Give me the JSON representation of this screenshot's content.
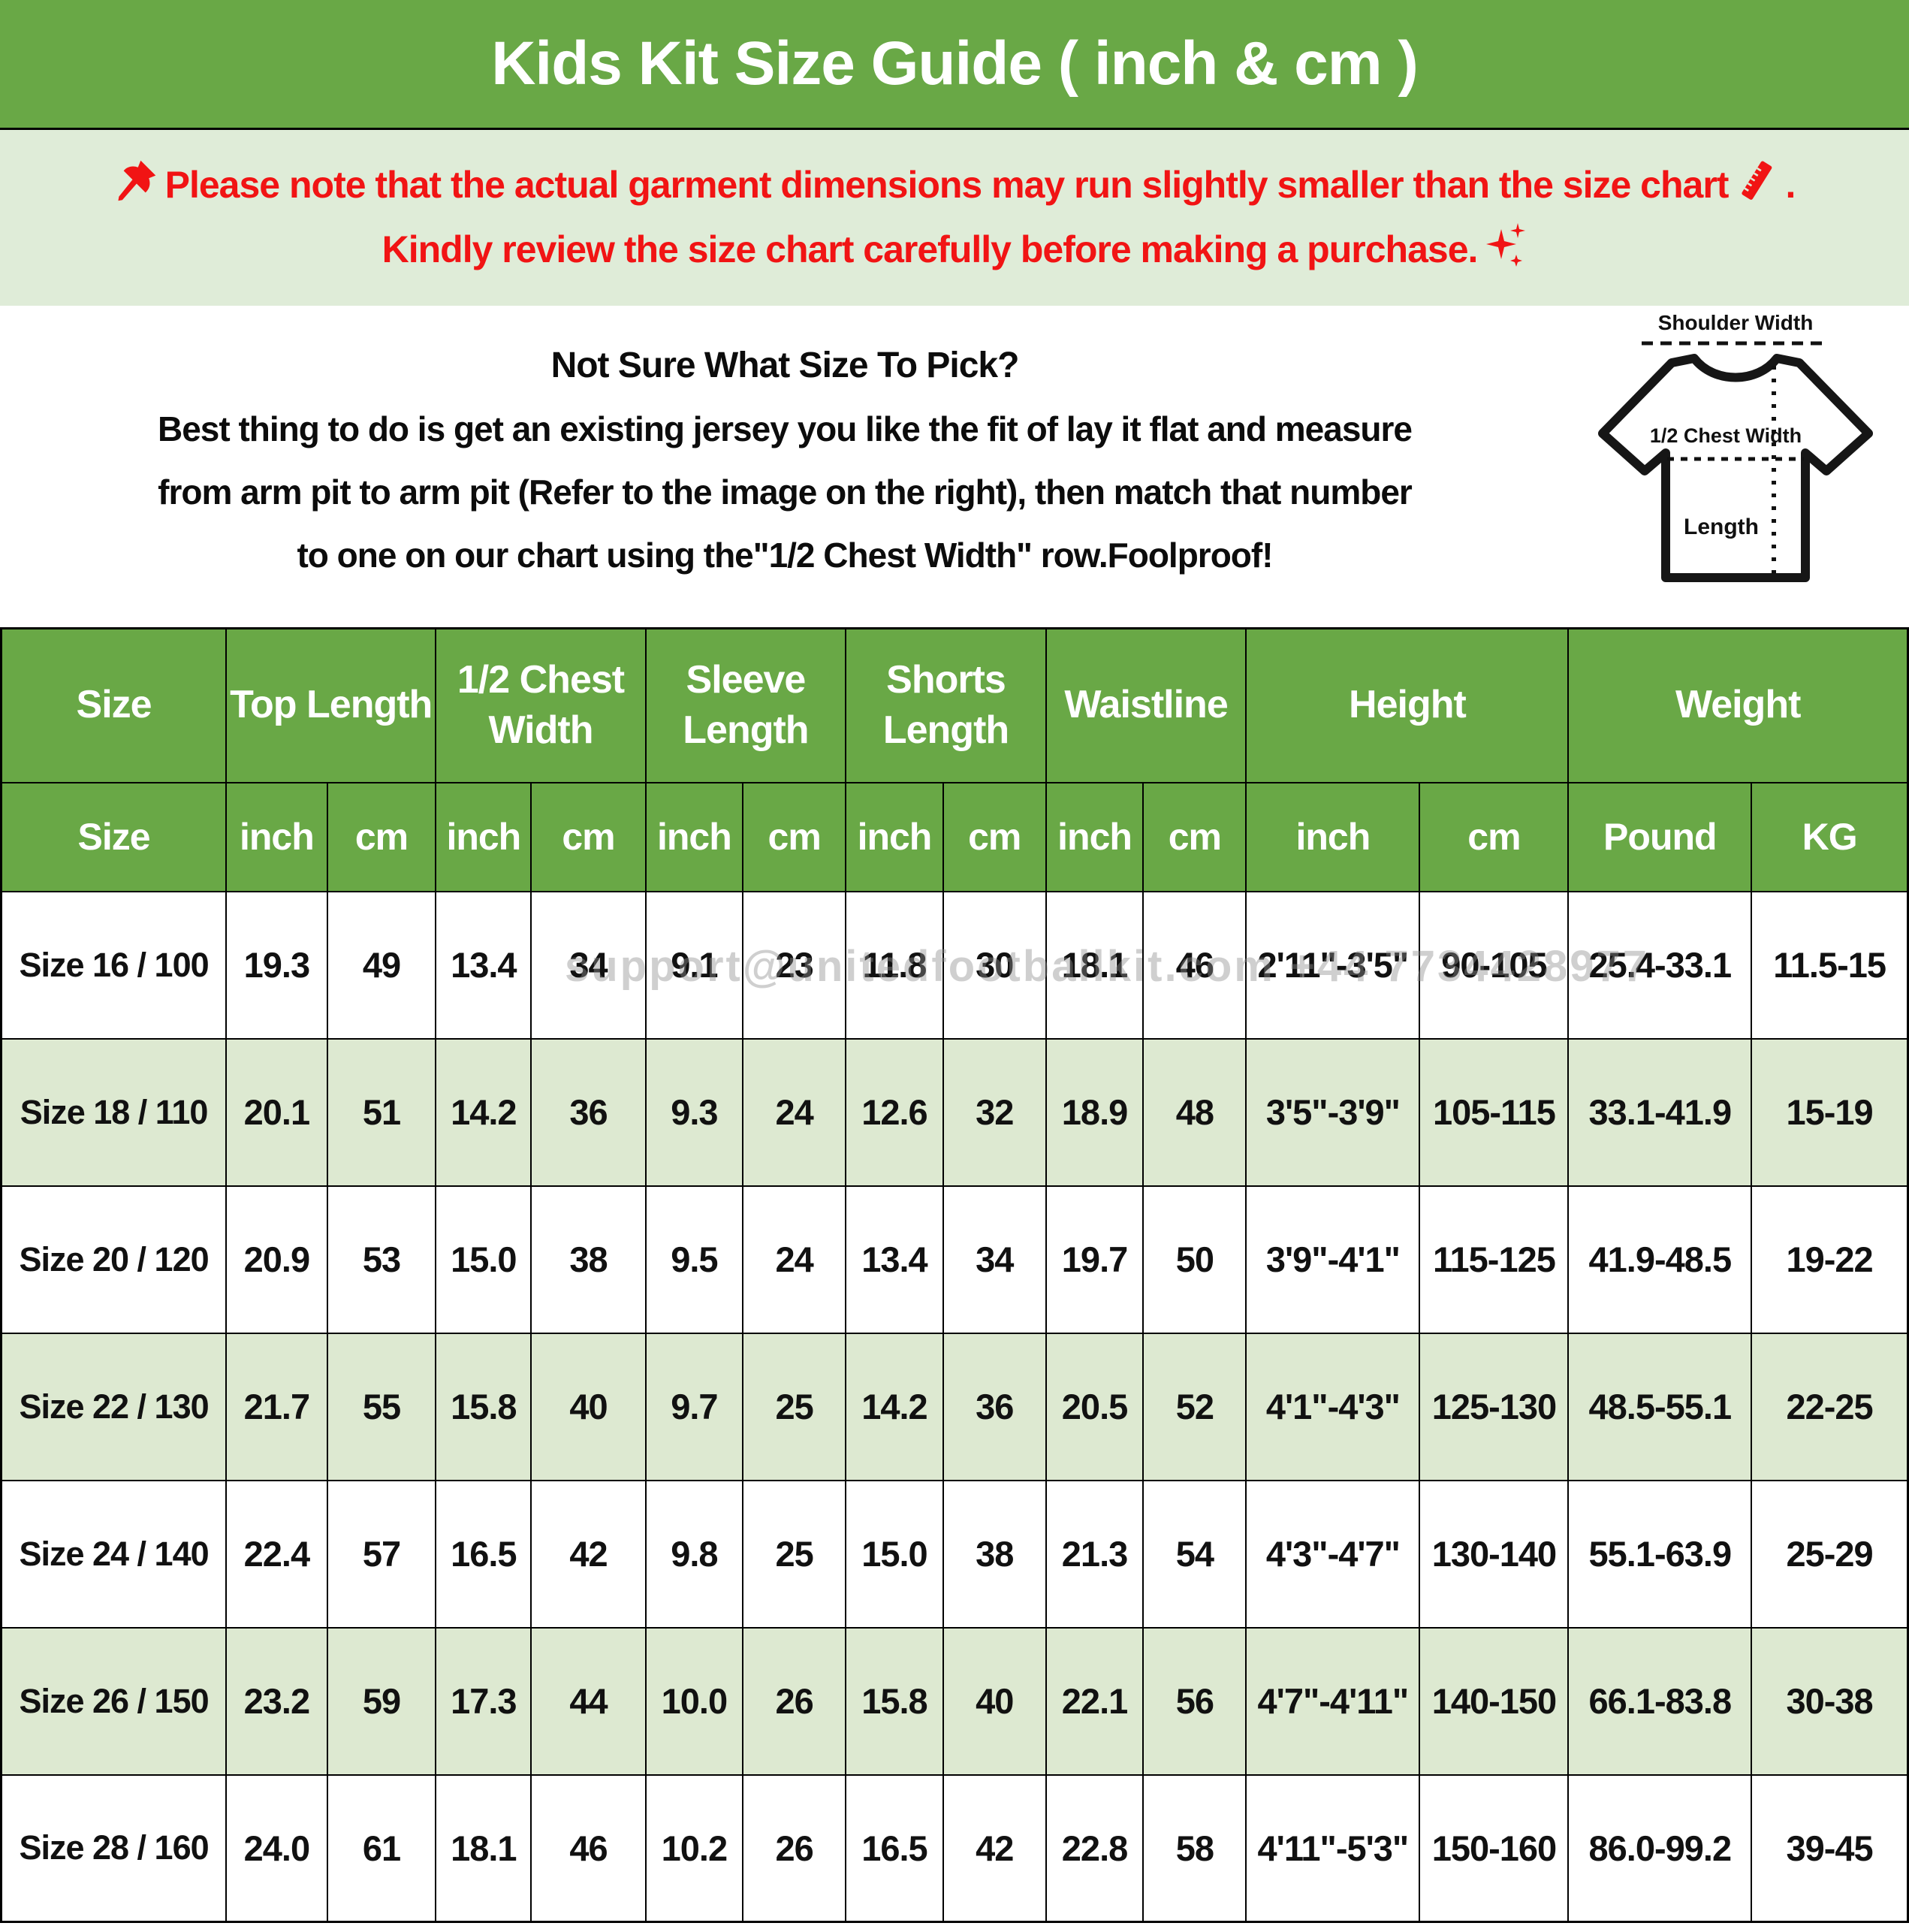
{
  "page": {
    "title": "Kids Kit Size Guide ( inch & cm )"
  },
  "notice": {
    "line1_text": "Please note that the actual garment dimensions may run slightly smaller than the size chart",
    "line1_period": ".",
    "line2_text": "Kindly review the size chart carefully before making a purchase.",
    "icons": {
      "pushpin": "📌",
      "ruler": "📏",
      "sparkles": "✨"
    }
  },
  "howto": {
    "heading": "Not Sure What Size To Pick?",
    "line1": "Best thing to do is get an existing jersey you like the fit of lay it flat and measure",
    "line2": "from arm pit to arm pit (Refer to the image on the right), then match that number",
    "line3": "to one on our chart using the\"1/2 Chest Width\" row.Foolproof!"
  },
  "diagram": {
    "shoulder_label": "Shoulder Width",
    "chest_label": "1/2 Chest Width",
    "length_label": "Length"
  },
  "table": {
    "group_headers": [
      "Size",
      "Top Length",
      "1/2 Chest Width",
      "Sleeve Length",
      "Shorts Length",
      "Waistline",
      "Height",
      "Weight"
    ],
    "unit_headers": [
      "Size",
      "inch",
      "cm",
      "inch",
      "cm",
      "inch",
      "cm",
      "inch",
      "cm",
      "inch",
      "cm",
      "inch",
      "cm",
      "Pound",
      "KG"
    ],
    "rows": [
      [
        "Size 16 / 100",
        "19.3",
        "49",
        "13.4",
        "34",
        "9.1",
        "23",
        "11.8",
        "30",
        "18.1",
        "46",
        "2'11\"-3'5\"",
        "90-105",
        "25.4-33.1",
        "11.5-15"
      ],
      [
        "Size 18 / 110",
        "20.1",
        "51",
        "14.2",
        "36",
        "9.3",
        "24",
        "12.6",
        "32",
        "18.9",
        "48",
        "3'5\"-3'9\"",
        "105-115",
        "33.1-41.9",
        "15-19"
      ],
      [
        "Size 20 / 120",
        "20.9",
        "53",
        "15.0",
        "38",
        "9.5",
        "24",
        "13.4",
        "34",
        "19.7",
        "50",
        "3'9\"-4'1\"",
        "115-125",
        "41.9-48.5",
        "19-22"
      ],
      [
        "Size 22 / 130",
        "21.7",
        "55",
        "15.8",
        "40",
        "9.7",
        "25",
        "14.2",
        "36",
        "20.5",
        "52",
        "4'1\"-4'3\"",
        "125-130",
        "48.5-55.1",
        "22-25"
      ],
      [
        "Size 24 / 140",
        "22.4",
        "57",
        "16.5",
        "42",
        "9.8",
        "25",
        "15.0",
        "38",
        "21.3",
        "54",
        "4'3\"-4'7\"",
        "130-140",
        "55.1-63.9",
        "25-29"
      ],
      [
        "Size 26 / 150",
        "23.2",
        "59",
        "17.3",
        "44",
        "10.0",
        "26",
        "15.8",
        "40",
        "22.1",
        "56",
        "4'7\"-4'11\"",
        "140-150",
        "66.1-83.8",
        "30-38"
      ],
      [
        "Size 28 / 160",
        "24.0",
        "61",
        "18.1",
        "46",
        "10.2",
        "26",
        "16.5",
        "42",
        "22.8",
        "58",
        "4'11\"-5'3\"",
        "150-160",
        "86.0-99.2",
        "39-45"
      ]
    ]
  },
  "watermark": "support@unitedfootballkit.com +44 7734428977",
  "colors": {
    "header_green": "#69a846",
    "band_green": "#dfecd8",
    "row_alt_green": "#dde9d1",
    "note_red": "#f11414",
    "text_black": "#111111"
  },
  "chart_data": {
    "type": "table",
    "title": "Kids Kit Size Guide ( inch & cm )",
    "columns": [
      "Size",
      "Top Length inch",
      "Top Length cm",
      "1/2 Chest Width inch",
      "1/2 Chest Width cm",
      "Sleeve Length inch",
      "Sleeve Length cm",
      "Shorts Length inch",
      "Shorts Length cm",
      "Waistline inch",
      "Waistline cm",
      "Height inch",
      "Height cm",
      "Weight Pound",
      "Weight KG"
    ],
    "rows": [
      [
        "Size 16 / 100",
        "19.3",
        "49",
        "13.4",
        "34",
        "9.1",
        "23",
        "11.8",
        "30",
        "18.1",
        "46",
        "2'11\"-3'5\"",
        "90-105",
        "25.4-33.1",
        "11.5-15"
      ],
      [
        "Size 18 / 110",
        "20.1",
        "51",
        "14.2",
        "36",
        "9.3",
        "24",
        "12.6",
        "32",
        "18.9",
        "48",
        "3'5\"-3'9\"",
        "105-115",
        "33.1-41.9",
        "15-19"
      ],
      [
        "Size 20 / 120",
        "20.9",
        "53",
        "15.0",
        "38",
        "9.5",
        "24",
        "13.4",
        "34",
        "19.7",
        "50",
        "3'9\"-4'1\"",
        "115-125",
        "41.9-48.5",
        "19-22"
      ],
      [
        "Size 22 / 130",
        "21.7",
        "55",
        "15.8",
        "40",
        "9.7",
        "25",
        "14.2",
        "36",
        "20.5",
        "52",
        "4'1\"-4'3\"",
        "125-130",
        "48.5-55.1",
        "22-25"
      ],
      [
        "Size 24 / 140",
        "22.4",
        "57",
        "16.5",
        "42",
        "9.8",
        "25",
        "15.0",
        "38",
        "21.3",
        "54",
        "4'3\"-4'7\"",
        "130-140",
        "55.1-63.9",
        "25-29"
      ],
      [
        "Size 26 / 150",
        "23.2",
        "59",
        "17.3",
        "44",
        "10.0",
        "26",
        "15.8",
        "40",
        "22.1",
        "56",
        "4'7\"-4'11\"",
        "140-150",
        "66.1-83.8",
        "30-38"
      ],
      [
        "Size 28 / 160",
        "24.0",
        "61",
        "18.1",
        "46",
        "10.2",
        "26",
        "16.5",
        "42",
        "22.8",
        "58",
        "4'11\"-5'3\"",
        "150-160",
        "86.0-99.2",
        "39-45"
      ]
    ]
  }
}
